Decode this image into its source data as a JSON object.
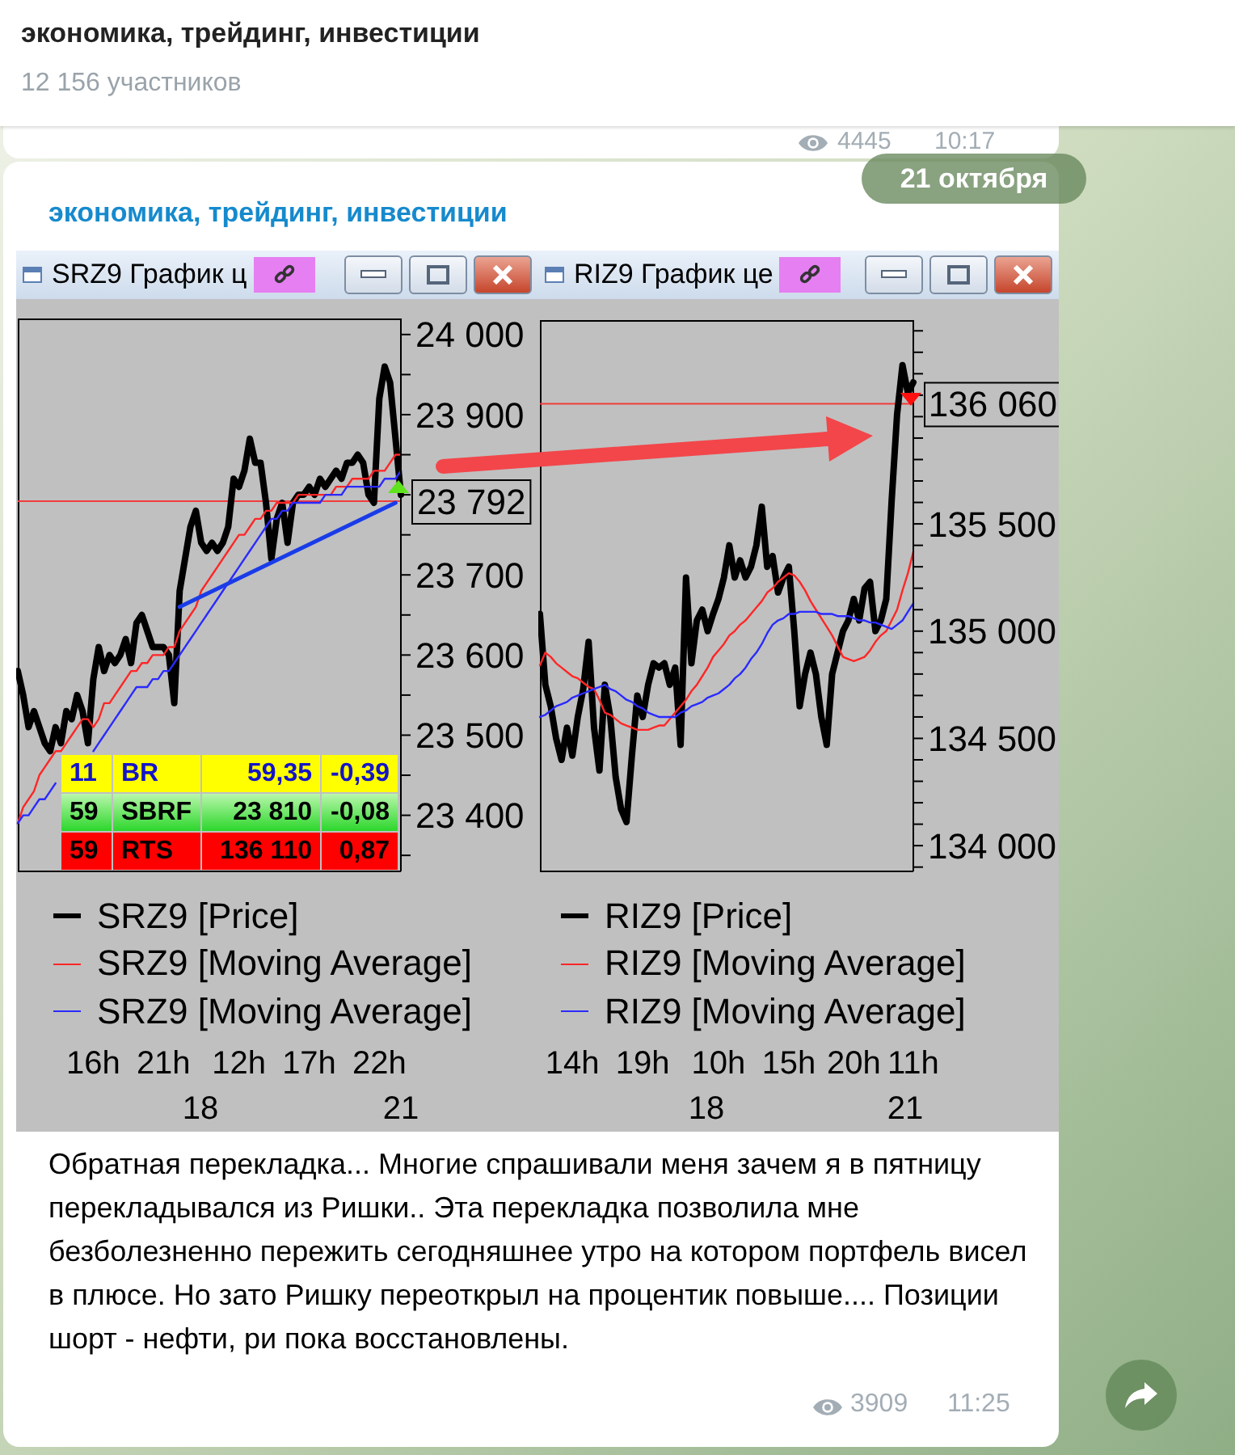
{
  "chart_data": [
    {
      "type": "other",
      "title": "экономика, трейдинг, инвестиции",
      "subtitle": "12 156 участников",
      "annotations": [
        "4445",
        "10:17",
        "21 октября",
        "экономика, трейдинг, инвестиции"
      ]
    },
    {
      "type": "line",
      "title": "SRZ9 График ц",
      "categories": [
        null,
        null,
        null,
        null,
        null,
        null,
        null,
        null,
        null,
        null,
        null,
        null,
        null,
        null,
        "16h",
        null,
        null,
        null,
        null,
        null,
        null,
        null,
        null,
        null,
        null,
        null,
        null,
        "21h",
        null,
        null,
        null,
        null,
        null,
        null,
        null,
        null,
        null,
        null,
        null,
        null,
        null,
        "12h",
        null,
        null,
        null,
        null,
        null,
        null,
        null,
        null,
        null,
        null,
        null,
        null,
        "17h",
        null,
        null,
        null,
        null,
        null,
        null,
        null,
        null,
        null,
        null,
        null,
        null,
        "22h",
        null,
        null,
        null,
        null
      ],
      "series": [
        {
          "name": "SRZ9 [Price]",
          "color": "#000000",
          "values": [
            23580,
            23550,
            23510,
            23530,
            23510,
            23490,
            23480,
            23510,
            23490,
            23530,
            23520,
            23550,
            23530,
            23490,
            23570,
            23610,
            23580,
            23600,
            23590,
            23600,
            23620,
            23590,
            23640,
            23650,
            23630,
            23610,
            23610,
            23610,
            23600,
            23540,
            23680,
            23720,
            23760,
            23780,
            23740,
            23730,
            23740,
            23730,
            23740,
            23760,
            23820,
            23810,
            23830,
            23870,
            23840,
            23840,
            23790,
            23720,
            23770,
            23790,
            23740,
            23790,
            23800,
            23800,
            23810,
            23800,
            23820,
            23810,
            23820,
            23830,
            23820,
            23840,
            23840,
            23850,
            23840,
            23800,
            23790,
            23920,
            23960,
            23940,
            23870,
            23800
          ]
        },
        {
          "name": "SRZ9 [Moving Average]",
          "color": "#ff2626",
          "values": [
            23390,
            23410,
            23420,
            23430,
            23450,
            23460,
            23470,
            23480,
            23480,
            23490,
            23500,
            23510,
            23520,
            23520,
            23510,
            23520,
            23540,
            23540,
            23550,
            23560,
            23570,
            23580,
            23580,
            23590,
            23590,
            23600,
            23600,
            23600,
            23610,
            23610,
            23630,
            23640,
            23650,
            23660,
            23680,
            23690,
            23700,
            23710,
            23720,
            23730,
            23740,
            23750,
            23750,
            23760,
            23770,
            23770,
            23780,
            23780,
            23790,
            23790,
            23790,
            23790,
            23800,
            23800,
            23800,
            23800,
            23800,
            23800,
            23800,
            23810,
            23810,
            23810,
            23820,
            23820,
            23820,
            23820,
            23830,
            23830,
            23830,
            23840,
            23850,
            23850
          ]
        },
        {
          "name": "SRZ9 [Moving Average]",
          "color": "#2a2aff",
          "values": [
            23390,
            23400,
            23400,
            23410,
            23420,
            23420,
            23430,
            23440,
            null,
            null,
            null,
            null,
            null,
            null,
            23480,
            23490,
            23500,
            23510,
            23520,
            23530,
            23540,
            23550,
            23560,
            23560,
            23560,
            23570,
            23570,
            23580,
            23580,
            23590,
            23600,
            23610,
            23620,
            23630,
            23640,
            23650,
            23660,
            23670,
            23680,
            23690,
            23700,
            23710,
            23720,
            23730,
            23740,
            23750,
            23760,
            23770,
            23770,
            23780,
            23780,
            23790,
            23790,
            23790,
            23790,
            23790,
            23790,
            23800,
            23800,
            23800,
            23800,
            23810,
            23810,
            23810,
            23810,
            23810,
            23810,
            23810,
            23820,
            23820,
            23820,
            23830
          ]
        },
        {
          "color": "#1a3ce8",
          "values": [
            null,
            null,
            null,
            null,
            null,
            null,
            null,
            null,
            null,
            null,
            null,
            null,
            null,
            null,
            null,
            null,
            null,
            null,
            null,
            null,
            null,
            null,
            null,
            null,
            null,
            null,
            null,
            null,
            null,
            null,
            23660,
            null,
            null,
            null,
            null,
            null,
            null,
            null,
            null,
            null,
            null,
            null,
            null,
            null,
            null,
            null,
            null,
            null,
            null,
            null,
            null,
            null,
            null,
            null,
            null,
            null,
            null,
            null,
            null,
            null,
            null,
            null,
            null,
            null,
            null,
            null,
            null,
            null,
            null,
            null,
            23790,
            null
          ]
        }
      ],
      "ylim": [
        23330,
        24020
      ],
      "yticks": [
        {
          "value": 23350,
          "label": null
        },
        {
          "value": 23400,
          "label": "23 400"
        },
        {
          "value": 23450,
          "label": null
        },
        {
          "value": 23500,
          "label": "23 500"
        },
        {
          "value": 23550,
          "label": null
        },
        {
          "value": 23600,
          "label": "23 600"
        },
        {
          "value": 23650,
          "label": null
        },
        {
          "value": 23700,
          "label": "23 700"
        },
        {
          "value": 23750,
          "label": null
        },
        {
          "value": 23800,
          "label": null
        },
        {
          "value": 23850,
          "label": null
        },
        {
          "value": 23900,
          "label": "23 900"
        },
        {
          "value": 23950,
          "label": null
        },
        {
          "value": 24000,
          "label": "24 000"
        }
      ],
      "ref_lines": [
        {
          "axis": "y",
          "value": 23792,
          "label": "23 792",
          "color": "#f03c3c"
        }
      ],
      "legend": "bottom",
      "annotations": [
        "18",
        "21",
        "11",
        "BR",
        "59,35",
        "-0,39",
        "59",
        "SBRF",
        "23 810",
        "-0,08",
        "59",
        "RTS",
        "136 110",
        "0,87"
      ]
    },
    {
      "type": "line",
      "title": "RIZ9 График це",
      "categories": [
        null,
        null,
        null,
        null,
        null,
        null,
        "14h",
        null,
        null,
        null,
        null,
        null,
        null,
        null,
        null,
        null,
        null,
        null,
        null,
        "19h",
        null,
        null,
        null,
        null,
        null,
        null,
        null,
        null,
        null,
        null,
        null,
        null,
        null,
        "10h",
        null,
        null,
        null,
        null,
        null,
        null,
        null,
        null,
        null,
        null,
        null,
        null,
        "15h",
        null,
        null,
        null,
        null,
        null,
        null,
        null,
        null,
        null,
        null,
        null,
        "20h",
        null,
        null,
        null,
        null,
        null,
        null,
        null,
        null,
        null,
        null,
        "11h"
      ],
      "series": [
        {
          "name": "RIZ9 [Price]",
          "color": "#000000",
          "values": [
            135080,
            134750,
            134650,
            134500,
            134400,
            134550,
            134420,
            134600,
            134730,
            134950,
            134550,
            134350,
            134750,
            134600,
            134320,
            134170,
            134110,
            134420,
            134700,
            134600,
            134750,
            134850,
            134830,
            134850,
            134750,
            134830,
            134470,
            135250,
            134850,
            135050,
            135100,
            135000,
            135080,
            135150,
            135250,
            135400,
            135250,
            135330,
            135250,
            135300,
            135400,
            135580,
            135300,
            135350,
            135180,
            135250,
            135300,
            135000,
            134650,
            134800,
            134900,
            134800,
            134600,
            134470,
            134800,
            134900,
            135000,
            135050,
            135150,
            135050,
            135200,
            135230,
            135000,
            135050,
            135150,
            135610,
            136010,
            136240,
            136110,
            136160
          ]
        },
        {
          "name": "RIZ9 [Moving Average]",
          "color": "#ff2626",
          "values": [
            134840,
            134900,
            134880,
            134850,
            134830,
            134810,
            134790,
            134780,
            134760,
            134740,
            134730,
            134680,
            134620,
            134610,
            134590,
            134570,
            134560,
            134550,
            134540,
            134540,
            134540,
            134550,
            134560,
            134560,
            134590,
            134620,
            134650,
            134680,
            134720,
            134750,
            134790,
            134830,
            134880,
            134910,
            134940,
            134980,
            135000,
            135030,
            135050,
            135080,
            135110,
            135140,
            135180,
            135200,
            135230,
            135250,
            135270,
            135260,
            135230,
            135190,
            135140,
            135100,
            135060,
            135020,
            134980,
            134930,
            134880,
            134870,
            134860,
            134870,
            134880,
            134910,
            134950,
            134980,
            135000,
            135050,
            135100,
            135190,
            135270,
            135370
          ]
        },
        {
          "name": "RIZ9 [Moving Average]",
          "color": "#2a2aff",
          "values": [
            134600,
            134610,
            134630,
            134650,
            134660,
            134670,
            134690,
            134700,
            134710,
            134720,
            134730,
            134740,
            134750,
            134730,
            134720,
            134700,
            134680,
            134670,
            134650,
            134640,
            134620,
            134610,
            134600,
            134600,
            134600,
            134600,
            134620,
            134630,
            134650,
            134660,
            134670,
            134690,
            134700,
            134710,
            134730,
            134750,
            134780,
            134800,
            134830,
            134870,
            134900,
            134940,
            134990,
            135030,
            135050,
            135060,
            135080,
            135080,
            135090,
            135090,
            135090,
            135090,
            135080,
            135080,
            135080,
            135070,
            135070,
            135070,
            135060,
            135050,
            135050,
            135040,
            135040,
            135030,
            135020,
            135010,
            135030,
            135050,
            135090,
            135130
          ]
        }
      ],
      "ylim": [
        133880,
        136450
      ],
      "yticks": [
        {
          "value": 133900,
          "label": null
        },
        {
          "value": 134000,
          "label": "134 000"
        },
        {
          "value": 134100,
          "label": null
        },
        {
          "value": 134200,
          "label": null
        },
        {
          "value": 134300,
          "label": null
        },
        {
          "value": 134400,
          "label": null
        },
        {
          "value": 134500,
          "label": "134 500"
        },
        {
          "value": 134600,
          "label": null
        },
        {
          "value": 134700,
          "label": null
        },
        {
          "value": 134800,
          "label": null
        },
        {
          "value": 134900,
          "label": null
        },
        {
          "value": 135000,
          "label": "135 000"
        },
        {
          "value": 135100,
          "label": null
        },
        {
          "value": 135200,
          "label": null
        },
        {
          "value": 135300,
          "label": null
        },
        {
          "value": 135400,
          "label": null
        },
        {
          "value": 135500,
          "label": "135 500"
        },
        {
          "value": 135600,
          "label": null
        },
        {
          "value": 135700,
          "label": null
        },
        {
          "value": 135800,
          "label": null
        },
        {
          "value": 135900,
          "label": null
        },
        {
          "value": 136000,
          "label": null
        },
        {
          "value": 136100,
          "label": null
        },
        {
          "value": 136200,
          "label": null
        },
        {
          "value": 136300,
          "label": null
        },
        {
          "value": 136400,
          "label": null
        }
      ],
      "ref_lines": [
        {
          "axis": "y",
          "value": 136060,
          "label": "136 060",
          "color": "#f03c3c"
        }
      ],
      "legend": "bottom",
      "annotations": [
        "18",
        "21"
      ]
    },
    {
      "type": "other",
      "annotations": [
        "Обратная перекладка... Многие спрашивали меня зачем я в пятницу перекладывался из Ришки.. Эта перекладка позволила мне безболезненно пережить сегодняшнее утро на котором портфель висел в плюсе. Но зато Ришку переоткрыл на процентик повыше.... Позиции шорт - нефти, ри пока восстановлены.",
        "3909",
        "11:25"
      ]
    }
  ]
}
